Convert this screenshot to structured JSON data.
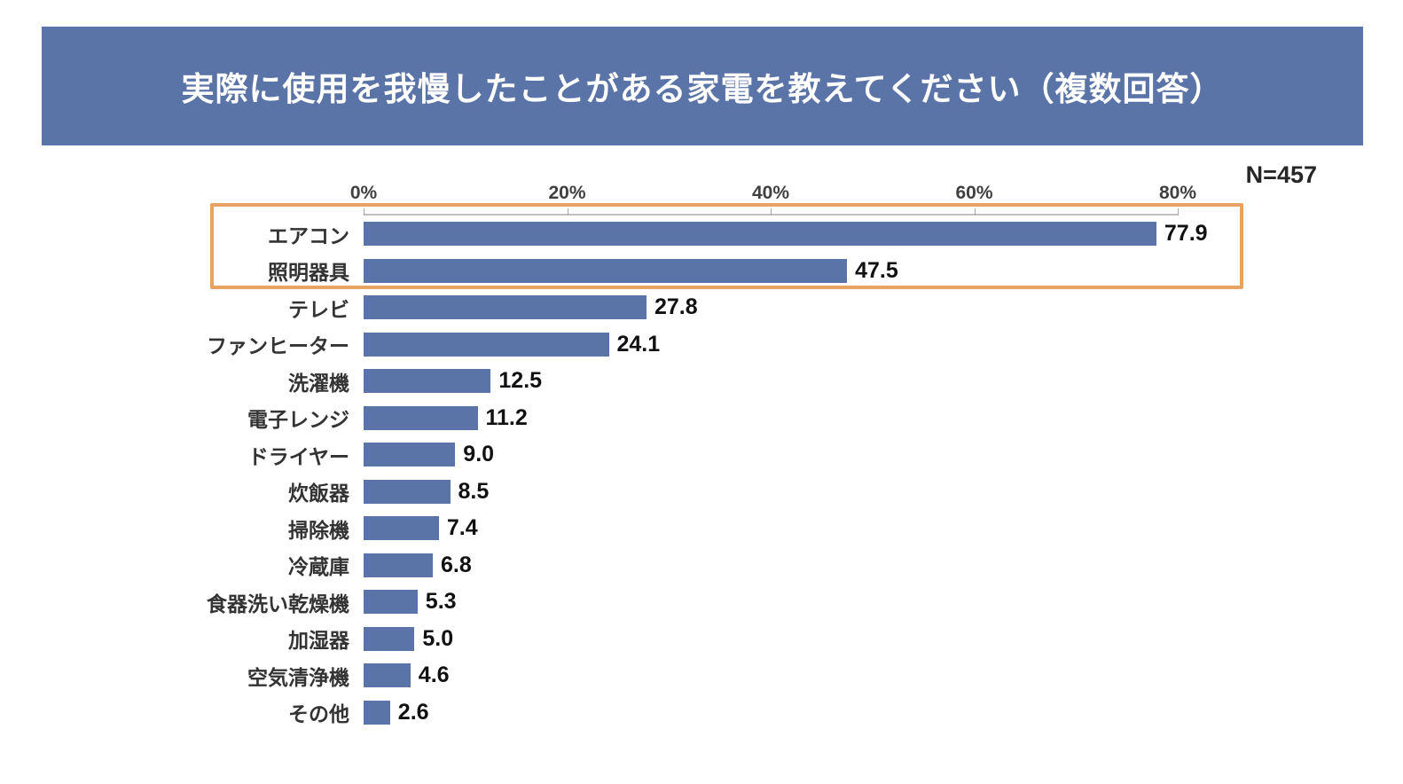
{
  "header": {
    "title": "実際に使用を我慢したことがある家電を教えてください（複数回答）",
    "bg_color": "#5B74A8"
  },
  "n_label": "N=457",
  "chart_data": {
    "type": "bar",
    "orientation": "horizontal",
    "title": "実際に使用を我慢したことがある家電を教えてください（複数回答）",
    "sample_size_label": "N=457",
    "categories": [
      "エアコン",
      "照明器具",
      "テレビ",
      "ファンヒーター",
      "洗濯機",
      "電子レンジ",
      "ドライヤー",
      "炊飯器",
      "掃除機",
      "冷蔵庫",
      "食器洗い乾燥機",
      "加湿器",
      "空気清浄機",
      "その他"
    ],
    "values": [
      77.9,
      47.5,
      27.8,
      24.1,
      12.5,
      11.2,
      9.0,
      8.5,
      7.4,
      6.8,
      5.3,
      5.0,
      4.6,
      2.6
    ],
    "value_labels": [
      "77.9",
      "47.5",
      "27.8",
      "24.1",
      "12.5",
      "11.2",
      "9.0",
      "8.5",
      "7.4",
      "6.8",
      "5.3",
      "5.0",
      "4.6",
      "2.6"
    ],
    "axis": {
      "tick_labels": [
        "0%",
        "20%",
        "40%",
        "60%",
        "80%"
      ],
      "tick_values": [
        0,
        20,
        40,
        60,
        80
      ],
      "max": 80,
      "position": "top"
    },
    "unit": "%",
    "bar_color": "#5B74A8",
    "grid": false,
    "legend": false,
    "highlight": {
      "rows": [
        0,
        1
      ],
      "row_labels": [
        "エアコン",
        "照明器具"
      ],
      "border_color": "#E8A261"
    }
  }
}
